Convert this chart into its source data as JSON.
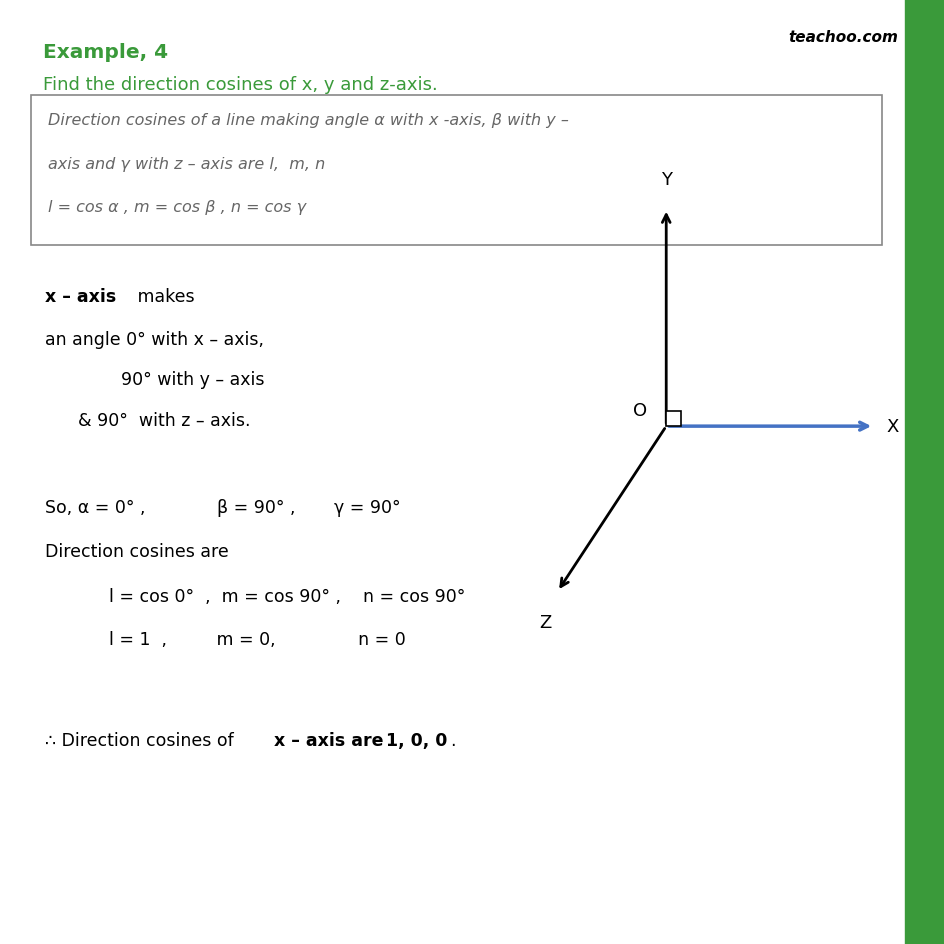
{
  "bg_color": "#ffffff",
  "green_color": "#3a9a3a",
  "black": "#000000",
  "gray_text": "#666666",
  "blue_arrow": "#4472c4",
  "title_line1": "Example, 4",
  "title_line2": "Find the direction cosines of x, y and z-axis.",
  "teachoo": "teachoo.com",
  "box_line1": "Direction cosines of a line making angle α with x -axis, β with y –",
  "box_line2": "axis and γ with z – axis are l,  m, n",
  "box_line3": "l = cos α , m = cos β , n = cos γ"
}
